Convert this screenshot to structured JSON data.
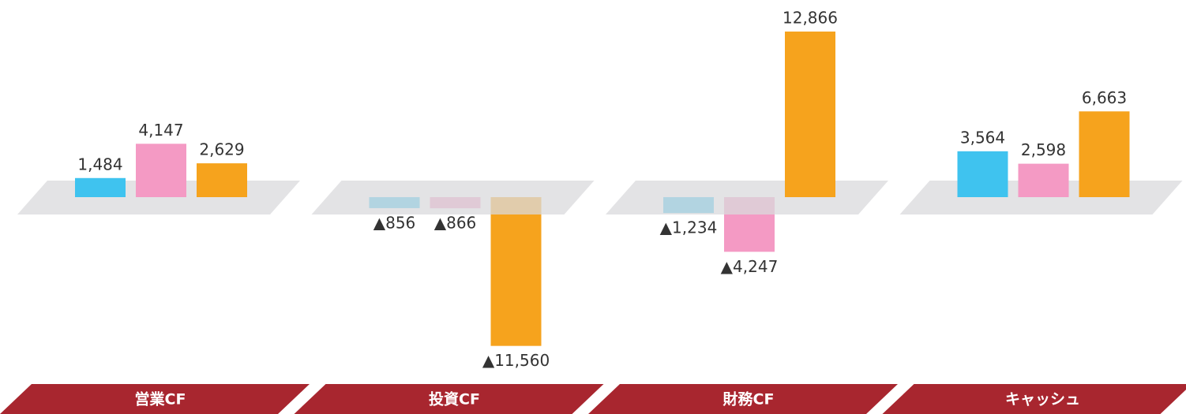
{
  "chart_data": {
    "type": "bar",
    "categories": [
      "営業CF",
      "投資CF",
      "財務CF",
      "キャッシュ"
    ],
    "series": [
      {
        "color": "#3fc3ef",
        "values": [
          1484,
          -856,
          -1234,
          3564
        ],
        "value_labels": [
          "1,484",
          "▲856",
          "▲1,234",
          "3,564"
        ]
      },
      {
        "color": "#f49ac4",
        "values": [
          4147,
          -866,
          -4247,
          2598
        ],
        "value_labels": [
          "4,147",
          "▲866",
          "▲4,247",
          "2,598"
        ]
      },
      {
        "color": "#f6a31d",
        "values": [
          2629,
          -11560,
          12866,
          6663
        ],
        "value_labels": [
          "2,629",
          "▲11,560",
          "12,866",
          "6,663"
        ]
      }
    ]
  }
}
